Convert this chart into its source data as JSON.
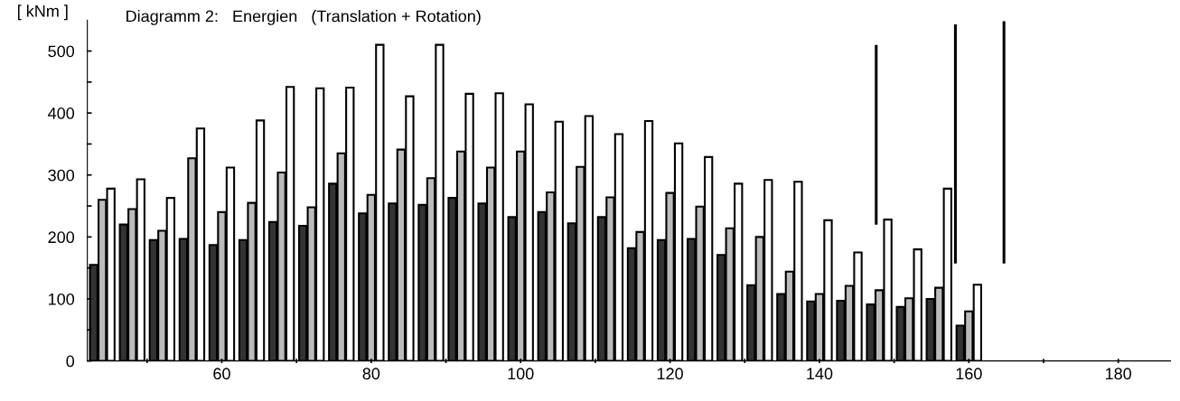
{
  "chart_data": {
    "type": "bar",
    "title": "Diagramm 2:   Energien   (Translation + Rotation)",
    "ylabel": "[ kNm ]",
    "x": [
      44,
      48,
      52,
      56,
      60,
      64,
      68,
      72,
      76,
      80,
      84,
      88,
      92,
      96,
      100,
      104,
      108,
      112,
      116,
      120,
      124,
      128,
      132,
      136,
      140,
      144,
      148,
      152,
      156,
      160
    ],
    "series": [
      {
        "color": "#333333",
        "values": [
          155,
          220,
          195,
          197,
          187,
          195,
          224,
          218,
          286,
          238,
          254,
          252,
          263,
          254,
          232,
          240,
          222,
          232,
          182,
          195,
          197,
          171,
          122,
          108,
          96,
          97,
          91,
          87,
          100,
          57
        ]
      },
      {
        "color": "#bbbbbb",
        "values": [
          260,
          245,
          210,
          327,
          240,
          255,
          304,
          248,
          335,
          268,
          341,
          295,
          338,
          312,
          338,
          272,
          313,
          264,
          208,
          271,
          249,
          214,
          200,
          144,
          108,
          121,
          114,
          101,
          118,
          80
        ]
      },
      {
        "color": "#ffffff",
        "values": [
          278,
          293,
          263,
          375,
          312,
          388,
          442,
          440,
          441,
          510,
          427,
          510,
          431,
          432,
          414,
          386,
          395,
          366,
          387,
          351,
          329,
          286,
          292,
          289,
          227,
          175,
          228,
          180,
          278,
          123
        ]
      },
      {
        "type": "line",
        "color": "#000000",
        "x": [
          147.6,
          147.6
        ],
        "values": [
          220,
          510
        ]
      },
      {
        "type": "line",
        "color": "#000000",
        "x": [
          158.2,
          158.2
        ],
        "values": [
          157,
          543
        ]
      },
      {
        "type": "line",
        "color": "#000000",
        "x": [
          164.7,
          164.7
        ],
        "values": [
          157,
          548
        ]
      }
    ],
    "xlim": [
      42,
      187
    ],
    "ylim": [
      0,
      550
    ],
    "xticks": [
      {
        "value": 50,
        "label": null
      },
      60,
      {
        "value": 70,
        "label": null
      },
      80,
      {
        "value": 90,
        "label": null
      },
      100,
      {
        "value": 110,
        "label": null
      },
      120,
      {
        "value": 130,
        "label": null
      },
      140,
      {
        "value": 150,
        "label": null
      },
      160,
      {
        "value": 170,
        "label": null
      },
      180
    ],
    "yticks": [
      0,
      {
        "value": 50,
        "label": null
      },
      100,
      {
        "value": 150,
        "label": null
      },
      200,
      {
        "value": 250,
        "label": null
      },
      300,
      {
        "value": 350,
        "label": null
      },
      400,
      {
        "value": 450,
        "label": null
      },
      500
    ],
    "grid": false,
    "legend": false
  }
}
